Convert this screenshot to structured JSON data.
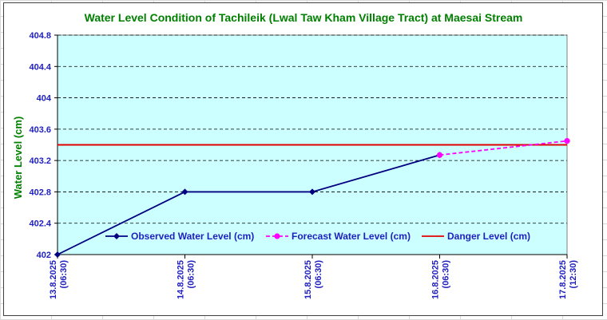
{
  "chart_data": {
    "type": "line",
    "title": "Water Level Condition of Tachileik (Lwal Taw Kham Village Tract) at Maesai Stream",
    "ylabel": "Water Level (cm)",
    "ylim": [
      402,
      404.8
    ],
    "yticks": [
      "402",
      "402.4",
      "402.8",
      "403.2",
      "403.6",
      "404",
      "404.4",
      "404.8"
    ],
    "ytick_values": [
      402,
      402.4,
      402.8,
      403.2,
      403.6,
      404,
      404.4,
      404.8
    ],
    "categories": [
      {
        "date": "13.8.2025",
        "time": "(06:30)"
      },
      {
        "date": "14.8.2025",
        "time": "(06:30)"
      },
      {
        "date": "15.8.2025",
        "time": "(06:30)"
      },
      {
        "date": "16.8.2025",
        "time": "(06:30)"
      },
      {
        "date": "17.8.2025",
        "time": "(12:30)"
      }
    ],
    "series": [
      {
        "name": "Observed Water Level (cm)",
        "color": "#000080",
        "marker": "diamond",
        "style": "solid",
        "points": [
          [
            0,
            402.0
          ],
          [
            1,
            402.8
          ],
          [
            2,
            402.8
          ],
          [
            3,
            403.27
          ]
        ]
      },
      {
        "name": "Forecast Water Level (cm)",
        "color": "#ff00ff",
        "marker": "circle",
        "style": "dashed",
        "points": [
          [
            3,
            403.27
          ],
          [
            4,
            403.45
          ]
        ]
      }
    ],
    "danger_level": {
      "name": "Danger Level (cm)",
      "value": 403.4,
      "color": "#e00000"
    },
    "grid": true,
    "legend_position": "bottom inside plot",
    "plot_background": "#ccffff"
  }
}
